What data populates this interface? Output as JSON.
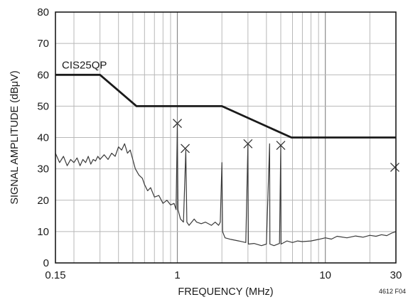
{
  "chart_data": {
    "type": "line",
    "title": "",
    "xlabel": "FREQUENCY (MHz)",
    "ylabel": "SIGNAL AMPLITUDE (dBμV)",
    "figure_note": "4612 F04",
    "x_scale": "log",
    "xlim": [
      0.15,
      30
    ],
    "ylim": [
      0,
      80
    ],
    "grid": true,
    "x_tick_labels": [
      {
        "value": 0.15,
        "label": "0.15"
      },
      {
        "value": 1,
        "label": "1"
      },
      {
        "value": 10,
        "label": "10"
      },
      {
        "value": 30,
        "label": "30"
      }
    ],
    "y_ticks": [
      0,
      10,
      20,
      30,
      40,
      50,
      60,
      70,
      80
    ],
    "series": [
      {
        "name": "CIS25QP",
        "color": "#1a1a1a",
        "points": [
          [
            0.15,
            60
          ],
          [
            0.3,
            60
          ],
          [
            0.53,
            50
          ],
          [
            2.0,
            50
          ],
          [
            5.9,
            40
          ],
          [
            30,
            40
          ]
        ]
      },
      {
        "color": "#3a3a3a",
        "points": [
          [
            0.15,
            35
          ],
          [
            0.16,
            32
          ],
          [
            0.17,
            34
          ],
          [
            0.18,
            31
          ],
          [
            0.19,
            33
          ],
          [
            0.2,
            32
          ],
          [
            0.21,
            33.5
          ],
          [
            0.22,
            31
          ],
          [
            0.23,
            33
          ],
          [
            0.24,
            32
          ],
          [
            0.25,
            34
          ],
          [
            0.26,
            31.5
          ],
          [
            0.27,
            33
          ],
          [
            0.28,
            32.5
          ],
          [
            0.29,
            34
          ],
          [
            0.3,
            33
          ],
          [
            0.32,
            34.5
          ],
          [
            0.34,
            33
          ],
          [
            0.36,
            35
          ],
          [
            0.38,
            34
          ],
          [
            0.4,
            37
          ],
          [
            0.42,
            36
          ],
          [
            0.44,
            38
          ],
          [
            0.46,
            35
          ],
          [
            0.48,
            36
          ],
          [
            0.5,
            33
          ],
          [
            0.52,
            30
          ],
          [
            0.55,
            28
          ],
          [
            0.58,
            27
          ],
          [
            0.6,
            25
          ],
          [
            0.63,
            23
          ],
          [
            0.66,
            24
          ],
          [
            0.7,
            21
          ],
          [
            0.75,
            21.5
          ],
          [
            0.8,
            19
          ],
          [
            0.85,
            20
          ],
          [
            0.9,
            18.5
          ],
          [
            0.95,
            19
          ],
          [
            0.98,
            17
          ],
          [
            1.0,
            44
          ],
          [
            1.01,
            17
          ],
          [
            1.05,
            14
          ],
          [
            1.1,
            13
          ],
          [
            1.14,
            36
          ],
          [
            1.16,
            13
          ],
          [
            1.2,
            12
          ],
          [
            1.3,
            14
          ],
          [
            1.35,
            13
          ],
          [
            1.45,
            12.5
          ],
          [
            1.55,
            13
          ],
          [
            1.7,
            12
          ],
          [
            1.8,
            13
          ],
          [
            1.9,
            12
          ],
          [
            1.95,
            13
          ],
          [
            2.0,
            32
          ],
          [
            2.02,
            10
          ],
          [
            2.1,
            8
          ],
          [
            2.3,
            7.5
          ],
          [
            2.6,
            7
          ],
          [
            2.9,
            6.5
          ],
          [
            3.0,
            38
          ],
          [
            3.02,
            6
          ],
          [
            3.3,
            6.2
          ],
          [
            3.7,
            5.5
          ],
          [
            4.0,
            6
          ],
          [
            4.2,
            38
          ],
          [
            4.22,
            6
          ],
          [
            4.5,
            5.5
          ],
          [
            4.9,
            6.2
          ],
          [
            5.0,
            37.5
          ],
          [
            5.02,
            6
          ],
          [
            5.5,
            7
          ],
          [
            6.0,
            6.5
          ],
          [
            6.5,
            7
          ],
          [
            7.0,
            6.8
          ],
          [
            8.0,
            7
          ],
          [
            9.0,
            7.5
          ],
          [
            10.0,
            8
          ],
          [
            11.0,
            7.6
          ],
          [
            12.0,
            8.5
          ],
          [
            14.0,
            8
          ],
          [
            16.0,
            8.6
          ],
          [
            18.0,
            8.2
          ],
          [
            20.0,
            8.8
          ],
          [
            22.0,
            8.5
          ],
          [
            24.0,
            9
          ],
          [
            26.0,
            8.7
          ],
          [
            28.0,
            9.5
          ],
          [
            30.0,
            10
          ]
        ]
      }
    ],
    "peak_markers": [
      {
        "x": 1.0,
        "y": 44.5
      },
      {
        "x": 1.13,
        "y": 36.5
      },
      {
        "x": 3.0,
        "y": 38
      },
      {
        "x": 5.0,
        "y": 37.5
      },
      {
        "x": 29.5,
        "y": 30.5
      }
    ]
  }
}
